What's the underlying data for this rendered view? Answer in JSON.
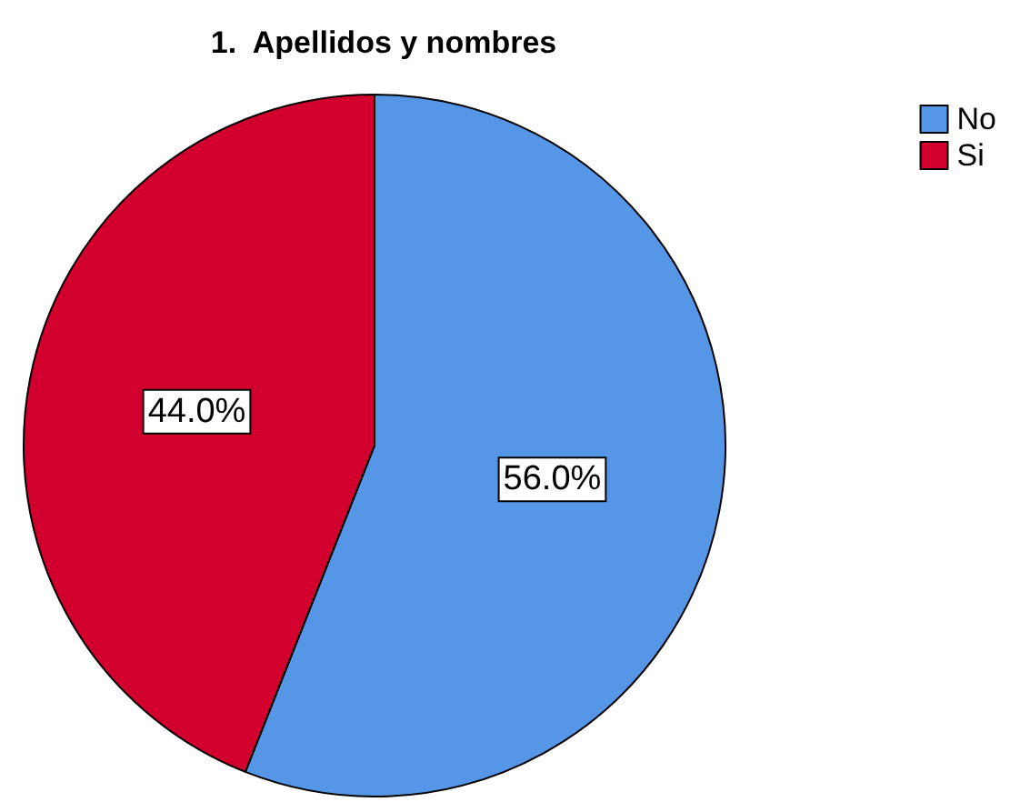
{
  "chart_data": {
    "type": "pie",
    "title": "1.  Apellidos y nombres",
    "categories": [
      "No",
      "Si"
    ],
    "values": [
      56,
      44
    ],
    "colors": [
      "#5596e6",
      "#d2002d"
    ],
    "value_labels": [
      "56.0%",
      "44.0%"
    ],
    "legend": "top right"
  }
}
